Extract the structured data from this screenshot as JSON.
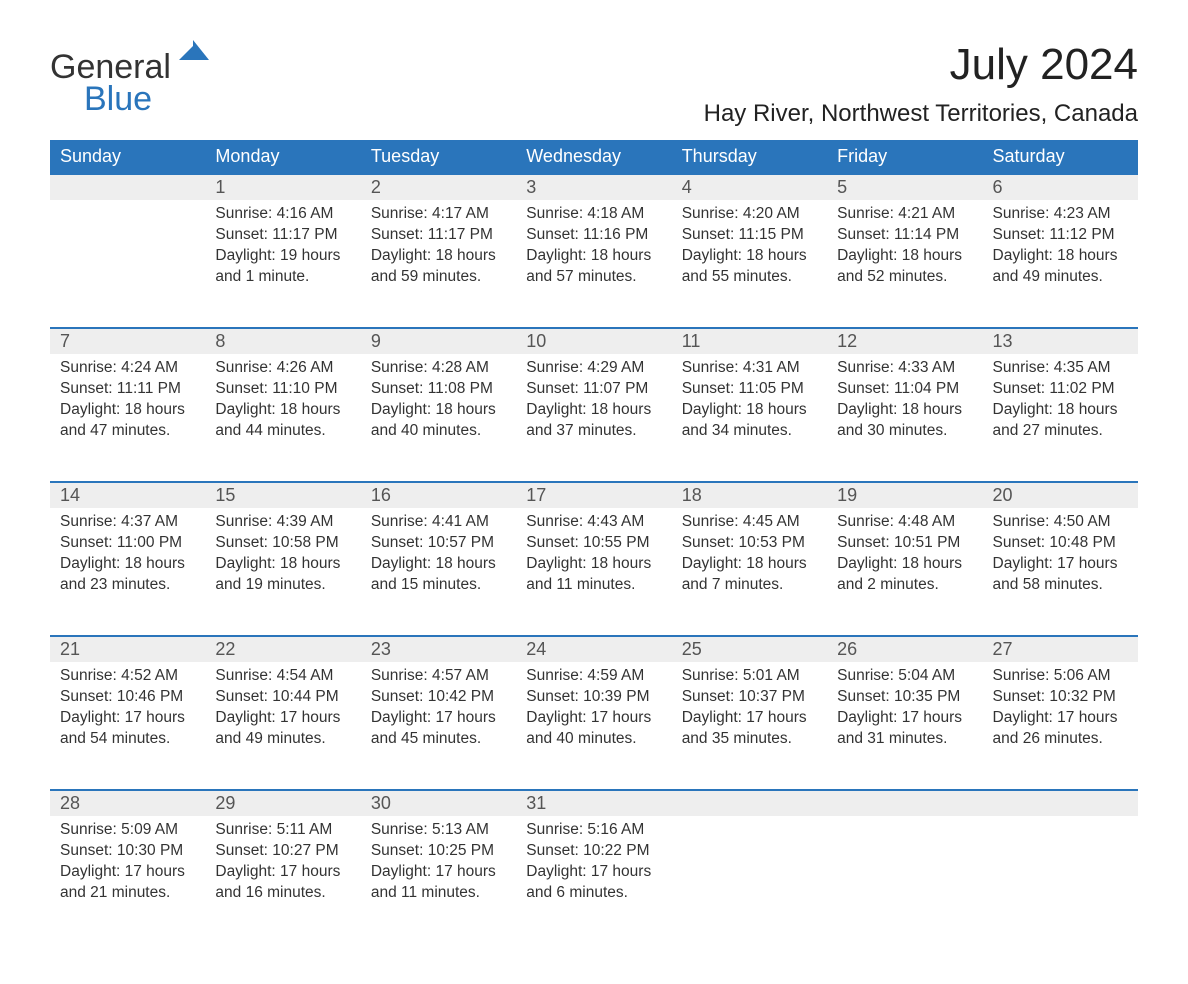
{
  "logo": {
    "word1": "General",
    "word2": "Blue"
  },
  "title": "July 2024",
  "location": "Hay River, Northwest Territories, Canada",
  "colors": {
    "header_bg": "#2a75bb",
    "header_text": "#ffffff",
    "daynum_bg": "#eeeeee",
    "daynum_border": "#2a75bb",
    "body_text": "#333333",
    "logo_blue": "#2a75bb"
  },
  "columns": [
    "Sunday",
    "Monday",
    "Tuesday",
    "Wednesday",
    "Thursday",
    "Friday",
    "Saturday"
  ],
  "weeks": [
    [
      null,
      {
        "n": "1",
        "sr": "4:16 AM",
        "ss": "11:17 PM",
        "dl": "19 hours and 1 minute."
      },
      {
        "n": "2",
        "sr": "4:17 AM",
        "ss": "11:17 PM",
        "dl": "18 hours and 59 minutes."
      },
      {
        "n": "3",
        "sr": "4:18 AM",
        "ss": "11:16 PM",
        "dl": "18 hours and 57 minutes."
      },
      {
        "n": "4",
        "sr": "4:20 AM",
        "ss": "11:15 PM",
        "dl": "18 hours and 55 minutes."
      },
      {
        "n": "5",
        "sr": "4:21 AM",
        "ss": "11:14 PM",
        "dl": "18 hours and 52 minutes."
      },
      {
        "n": "6",
        "sr": "4:23 AM",
        "ss": "11:12 PM",
        "dl": "18 hours and 49 minutes."
      }
    ],
    [
      {
        "n": "7",
        "sr": "4:24 AM",
        "ss": "11:11 PM",
        "dl": "18 hours and 47 minutes."
      },
      {
        "n": "8",
        "sr": "4:26 AM",
        "ss": "11:10 PM",
        "dl": "18 hours and 44 minutes."
      },
      {
        "n": "9",
        "sr": "4:28 AM",
        "ss": "11:08 PM",
        "dl": "18 hours and 40 minutes."
      },
      {
        "n": "10",
        "sr": "4:29 AM",
        "ss": "11:07 PM",
        "dl": "18 hours and 37 minutes."
      },
      {
        "n": "11",
        "sr": "4:31 AM",
        "ss": "11:05 PM",
        "dl": "18 hours and 34 minutes."
      },
      {
        "n": "12",
        "sr": "4:33 AM",
        "ss": "11:04 PM",
        "dl": "18 hours and 30 minutes."
      },
      {
        "n": "13",
        "sr": "4:35 AM",
        "ss": "11:02 PM",
        "dl": "18 hours and 27 minutes."
      }
    ],
    [
      {
        "n": "14",
        "sr": "4:37 AM",
        "ss": "11:00 PM",
        "dl": "18 hours and 23 minutes."
      },
      {
        "n": "15",
        "sr": "4:39 AM",
        "ss": "10:58 PM",
        "dl": "18 hours and 19 minutes."
      },
      {
        "n": "16",
        "sr": "4:41 AM",
        "ss": "10:57 PM",
        "dl": "18 hours and 15 minutes."
      },
      {
        "n": "17",
        "sr": "4:43 AM",
        "ss": "10:55 PM",
        "dl": "18 hours and 11 minutes."
      },
      {
        "n": "18",
        "sr": "4:45 AM",
        "ss": "10:53 PM",
        "dl": "18 hours and 7 minutes."
      },
      {
        "n": "19",
        "sr": "4:48 AM",
        "ss": "10:51 PM",
        "dl": "18 hours and 2 minutes."
      },
      {
        "n": "20",
        "sr": "4:50 AM",
        "ss": "10:48 PM",
        "dl": "17 hours and 58 minutes."
      }
    ],
    [
      {
        "n": "21",
        "sr": "4:52 AM",
        "ss": "10:46 PM",
        "dl": "17 hours and 54 minutes."
      },
      {
        "n": "22",
        "sr": "4:54 AM",
        "ss": "10:44 PM",
        "dl": "17 hours and 49 minutes."
      },
      {
        "n": "23",
        "sr": "4:57 AM",
        "ss": "10:42 PM",
        "dl": "17 hours and 45 minutes."
      },
      {
        "n": "24",
        "sr": "4:59 AM",
        "ss": "10:39 PM",
        "dl": "17 hours and 40 minutes."
      },
      {
        "n": "25",
        "sr": "5:01 AM",
        "ss": "10:37 PM",
        "dl": "17 hours and 35 minutes."
      },
      {
        "n": "26",
        "sr": "5:04 AM",
        "ss": "10:35 PM",
        "dl": "17 hours and 31 minutes."
      },
      {
        "n": "27",
        "sr": "5:06 AM",
        "ss": "10:32 PM",
        "dl": "17 hours and 26 minutes."
      }
    ],
    [
      {
        "n": "28",
        "sr": "5:09 AM",
        "ss": "10:30 PM",
        "dl": "17 hours and 21 minutes."
      },
      {
        "n": "29",
        "sr": "5:11 AM",
        "ss": "10:27 PM",
        "dl": "17 hours and 16 minutes."
      },
      {
        "n": "30",
        "sr": "5:13 AM",
        "ss": "10:25 PM",
        "dl": "17 hours and 11 minutes."
      },
      {
        "n": "31",
        "sr": "5:16 AM",
        "ss": "10:22 PM",
        "dl": "17 hours and 6 minutes."
      },
      null,
      null,
      null
    ]
  ],
  "labels": {
    "sunrise": "Sunrise: ",
    "sunset": "Sunset: ",
    "daylight": "Daylight: "
  }
}
